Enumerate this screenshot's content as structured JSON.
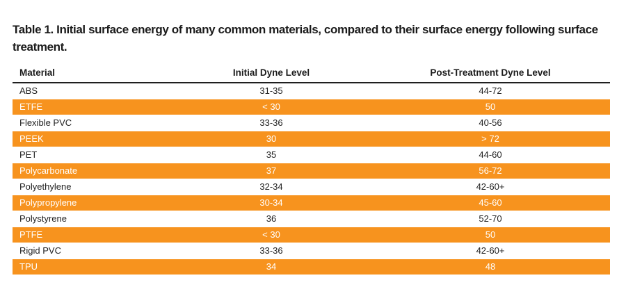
{
  "title": "Table 1. Initial surface energy of many common materials, compared to their surface energy following surface treatment.",
  "table": {
    "columns": [
      "Material",
      "Initial Dyne Level",
      "Post-Treatment Dyne Level"
    ],
    "rows": [
      {
        "material": "ABS",
        "initial": "31-35",
        "post": "44-72",
        "highlight": false
      },
      {
        "material": "ETFE",
        "initial": "< 30",
        "post": "50",
        "highlight": true
      },
      {
        "material": "Flexible PVC",
        "initial": "33-36",
        "post": "40-56",
        "highlight": false
      },
      {
        "material": "PEEK",
        "initial": "30",
        "post": "> 72",
        "highlight": true
      },
      {
        "material": "PET",
        "initial": "35",
        "post": "44-60",
        "highlight": false
      },
      {
        "material": "Polycarbonate",
        "initial": "37",
        "post": "56-72",
        "highlight": true
      },
      {
        "material": "Polyethylene",
        "initial": "32-34",
        "post": "42-60+",
        "highlight": false
      },
      {
        "material": "Polypropylene",
        "initial": "30-34",
        "post": "45-60",
        "highlight": true
      },
      {
        "material": "Polystyrene",
        "initial": "36",
        "post": "52-70",
        "highlight": false
      },
      {
        "material": "PTFE",
        "initial": "< 30",
        "post": "50",
        "highlight": true
      },
      {
        "material": "Rigid PVC",
        "initial": "33-36",
        "post": "42-60+",
        "highlight": false
      },
      {
        "material": "TPU",
        "initial": "34",
        "post": "48",
        "highlight": true
      }
    ]
  },
  "colors": {
    "highlight_row": "#F7931E",
    "highlight_row_text": "#FFFFFF",
    "body_text": "#212121",
    "header_rule": "#1F1F1F",
    "background": "#FFFFFF"
  }
}
